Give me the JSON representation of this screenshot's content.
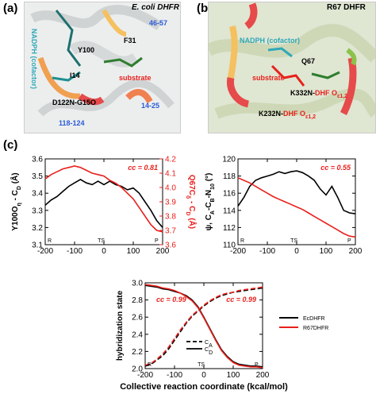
{
  "panels": {
    "a": {
      "label": "(a)",
      "title": "E. coli DHFR",
      "annotations": {
        "nadph": "NADPH (cofactor)",
        "loop1": "46-57",
        "f31": "F31",
        "y100": "Y100",
        "i14": "I14",
        "substrate": "substrate",
        "d122": "D122N-G15O",
        "loop2": "14-25",
        "loop3": "118-124"
      }
    },
    "b": {
      "label": "(b)",
      "title": "R67 DHFR",
      "annotations": {
        "nadph": "NADPH (cofactor)",
        "q67": "Q67",
        "substrate": "substrate",
        "k332": "K332N-",
        "k332dhf": "DHF O",
        "k332sub": "ε1,2",
        "k232": "K232N-",
        "k232dhf": "DHF O",
        "k232sub": "ε1,2"
      }
    },
    "c": {
      "label": "(c)"
    }
  },
  "colors": {
    "ec": "#000000",
    "r67": "#e8201c",
    "cc": "#e8201c",
    "nadph": "#2fa8b8",
    "loops": "#2a5bd7",
    "substrate": "#e8201c"
  },
  "chart_data": [
    {
      "type": "line",
      "xlim": [
        -200,
        200
      ],
      "xticks": [
        "-200",
        "-100",
        "0",
        "100",
        "200"
      ],
      "ylabel": "Y100O_η - C_D (Å)",
      "ylim": [
        3.1,
        3.6
      ],
      "yticks": [
        "3.1",
        "3.2",
        "3.3",
        "3.4",
        "3.5",
        "3.6"
      ],
      "y2label": "Q67C_δ - C_D (Å)",
      "y2lim": [
        3.6,
        4.2
      ],
      "y2ticks": [
        "3.6",
        "3.7",
        "3.8",
        "3.9",
        "4.0",
        "4.1",
        "4.2"
      ],
      "annotation": "cc = 0.81",
      "markers": [
        "R",
        "TS",
        "P"
      ],
      "series": [
        {
          "name": "EcDHFR",
          "axis": "left",
          "x": [
            -200,
            -180,
            -160,
            -140,
            -120,
            -100,
            -80,
            -60,
            -40,
            -20,
            0,
            20,
            40,
            60,
            80,
            100,
            120,
            140,
            160,
            180,
            200
          ],
          "y": [
            3.33,
            3.36,
            3.38,
            3.41,
            3.44,
            3.46,
            3.48,
            3.46,
            3.45,
            3.47,
            3.45,
            3.47,
            3.45,
            3.44,
            3.42,
            3.43,
            3.4,
            3.35,
            3.3,
            3.24,
            3.2
          ]
        },
        {
          "name": "R67DHFR",
          "axis": "right",
          "x": [
            -200,
            -180,
            -160,
            -140,
            -120,
            -100,
            -80,
            -60,
            -40,
            -20,
            0,
            20,
            40,
            60,
            80,
            100,
            120,
            140,
            160,
            180,
            200
          ],
          "y": [
            4.06,
            4.09,
            4.11,
            4.13,
            4.14,
            4.15,
            4.14,
            4.12,
            4.1,
            4.09,
            4.08,
            4.05,
            4.03,
            4.0,
            3.96,
            3.92,
            3.86,
            3.8,
            3.74,
            3.7,
            3.69
          ]
        }
      ]
    },
    {
      "type": "line",
      "xlim": [
        -200,
        200
      ],
      "xticks": [
        "-200",
        "-100",
        "0",
        "100",
        "200"
      ],
      "ylabel": "ψ, C_A-C_B-N_10 (°)",
      "ylim": [
        110,
        120
      ],
      "yticks": [
        "110",
        "112",
        "114",
        "116",
        "118",
        "120"
      ],
      "annotation": "cc = 0.55",
      "markers": [
        "R",
        "TS",
        "P"
      ],
      "series": [
        {
          "name": "EcDHFR",
          "x": [
            -200,
            -180,
            -160,
            -140,
            -120,
            -100,
            -80,
            -60,
            -40,
            -20,
            0,
            20,
            40,
            60,
            80,
            100,
            120,
            140,
            160,
            180,
            200
          ],
          "y": [
            114.5,
            115.5,
            116.8,
            117.5,
            117.8,
            118.0,
            118.2,
            118.5,
            118.3,
            118.5,
            118.6,
            118.4,
            118.0,
            117.5,
            116.5,
            115.8,
            116.8,
            115.5,
            114.0,
            113.7,
            113.6
          ]
        },
        {
          "name": "R67DHFR",
          "x": [
            -200,
            -180,
            -160,
            -140,
            -120,
            -100,
            -80,
            -60,
            -40,
            -20,
            0,
            20,
            40,
            60,
            80,
            100,
            120,
            140,
            160,
            180,
            200
          ],
          "y": [
            117.8,
            117.5,
            117.2,
            116.8,
            116.4,
            116.0,
            115.6,
            115.3,
            115.0,
            114.7,
            114.4,
            114.1,
            113.7,
            113.3,
            112.9,
            112.5,
            112.1,
            111.7,
            111.3,
            111.0,
            110.9
          ]
        }
      ]
    },
    {
      "type": "line",
      "xlabel": "Collective reaction coordinate (kcal/mol)",
      "ylabel": "hybridization state",
      "xlim": [
        -200,
        200
      ],
      "xticks": [
        "-200",
        "-100",
        "0",
        "100",
        "200"
      ],
      "ylim": [
        2.0,
        3.0
      ],
      "yticks": [
        "2.0",
        "2.2",
        "2.4",
        "2.6",
        "2.8",
        "3.0"
      ],
      "annotations": [
        "cc = 0.99",
        "cc = 0.99"
      ],
      "markers": [
        "R",
        "TS",
        "P"
      ],
      "legend": {
        "placement": "right",
        "entries": [
          "EcDHFR",
          "R67DHFR"
        ]
      },
      "inner_legend": [
        "C_A",
        "C_D"
      ],
      "series": [
        {
          "name": "EcDHFR",
          "style": "dash",
          "x": [
            -200,
            -180,
            -160,
            -140,
            -120,
            -100,
            -80,
            -60,
            -40,
            -20,
            0,
            20,
            40,
            60,
            80,
            100,
            120,
            140,
            160,
            180,
            200
          ],
          "y": [
            2.03,
            2.05,
            2.1,
            2.15,
            2.23,
            2.33,
            2.43,
            2.53,
            2.61,
            2.67,
            2.73,
            2.78,
            2.82,
            2.85,
            2.87,
            2.89,
            2.9,
            2.91,
            2.92,
            2.93,
            2.94
          ]
        },
        {
          "name": "EcDHFR",
          "style": "solid",
          "x": [
            -200,
            -180,
            -160,
            -140,
            -120,
            -100,
            -80,
            -60,
            -40,
            -20,
            0,
            20,
            40,
            60,
            80,
            100,
            120,
            140,
            160,
            180,
            200
          ],
          "y": [
            2.97,
            2.96,
            2.95,
            2.93,
            2.92,
            2.9,
            2.88,
            2.85,
            2.8,
            2.72,
            2.6,
            2.47,
            2.34,
            2.22,
            2.14,
            2.08,
            2.05,
            2.04,
            2.03,
            2.03,
            2.02
          ]
        },
        {
          "name": "R67DHFR",
          "style": "dash",
          "x": [
            -200,
            -180,
            -160,
            -140,
            -120,
            -100,
            -80,
            -60,
            -40,
            -20,
            0,
            20,
            40,
            60,
            80,
            100,
            120,
            140,
            160,
            180,
            200
          ],
          "y": [
            2.04,
            2.06,
            2.11,
            2.17,
            2.25,
            2.35,
            2.45,
            2.54,
            2.62,
            2.68,
            2.74,
            2.79,
            2.83,
            2.86,
            2.88,
            2.89,
            2.91,
            2.92,
            2.93,
            2.94,
            2.95
          ]
        },
        {
          "name": "R67DHFR",
          "style": "solid",
          "x": [
            -200,
            -180,
            -160,
            -140,
            -120,
            -100,
            -80,
            -60,
            -40,
            -20,
            0,
            20,
            40,
            60,
            80,
            100,
            120,
            140,
            160,
            180,
            200
          ],
          "y": [
            2.98,
            2.97,
            2.96,
            2.94,
            2.93,
            2.91,
            2.88,
            2.84,
            2.79,
            2.71,
            2.59,
            2.46,
            2.33,
            2.21,
            2.13,
            2.07,
            2.04,
            2.03,
            2.02,
            2.02,
            2.01
          ]
        }
      ]
    }
  ]
}
